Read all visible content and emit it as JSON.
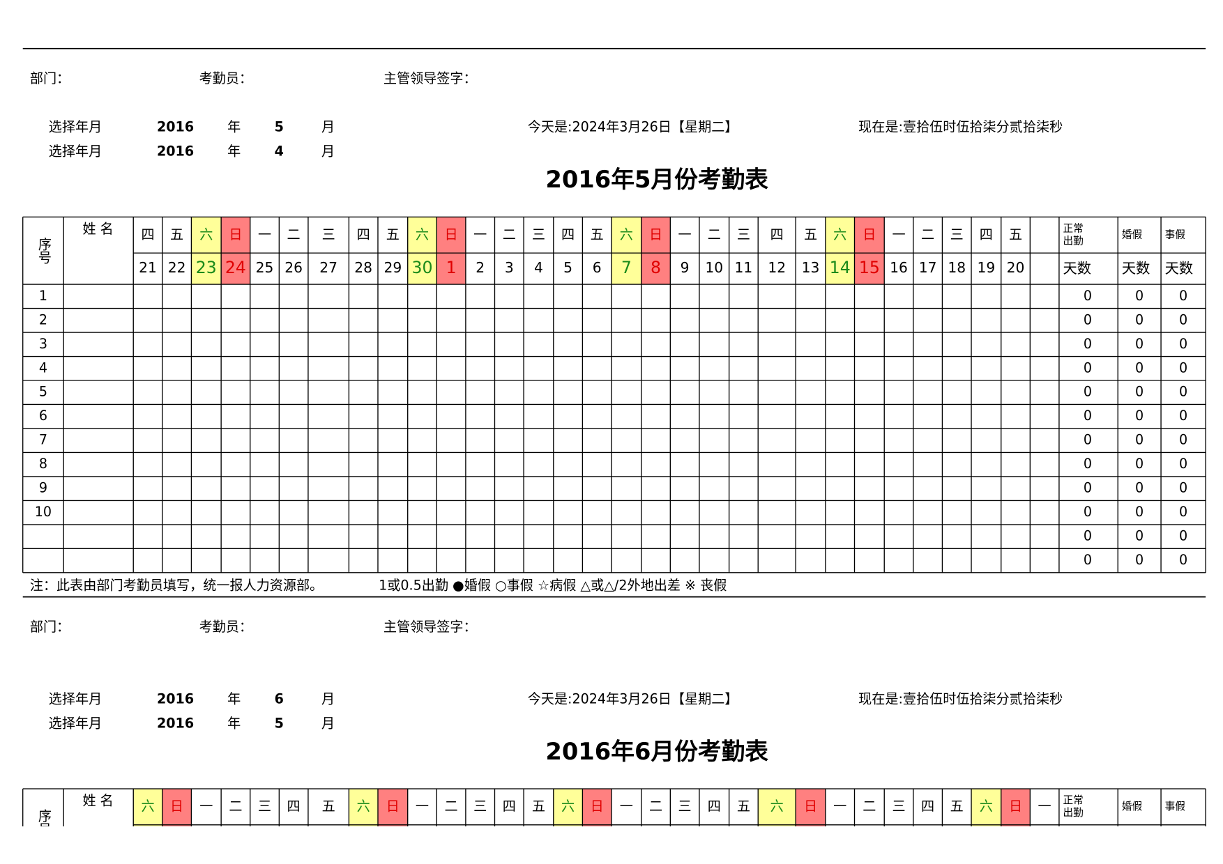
{
  "sections": [
    {
      "dept_label": "部门：",
      "clerk_label": "考勤员：",
      "leader_label": "主管领导签字：",
      "select_rows": [
        {
          "label": "选择年月",
          "year": "2016",
          "year_unit": "年",
          "month": "5",
          "month_unit": "月"
        },
        {
          "label": "选择年月",
          "year": "2016",
          "year_unit": "年",
          "month": "4",
          "month_unit": "月"
        }
      ],
      "today": "今天是:2024年3月26日【星期二】",
      "now": "现在是:壹拾伍时伍拾柒分贰拾柒秒",
      "title": "2016年5月份考勤表",
      "table": {
        "no_header": "序号",
        "name_header": "姓 名",
        "weekdays": [
          "四",
          "五",
          "六",
          "日",
          "一",
          "二",
          "三",
          "四",
          "五",
          "六",
          "日",
          "一",
          "二",
          "三",
          "四",
          "五",
          "六",
          "日",
          "一",
          "二",
          "三",
          "四",
          "五",
          "六",
          "日",
          "一",
          "二",
          "三",
          "四",
          "五",
          null
        ],
        "days": [
          21,
          22,
          23,
          24,
          25,
          26,
          27,
          28,
          29,
          30,
          1,
          2,
          3,
          4,
          5,
          6,
          7,
          8,
          9,
          10,
          11,
          12,
          13,
          14,
          15,
          16,
          17,
          18,
          19,
          20,
          null
        ],
        "summary_headers": [
          "正常出勤",
          "婚假",
          "事假"
        ],
        "summary_units": [
          "天数",
          "天数",
          "天数"
        ],
        "rows": [
          {
            "no": 1,
            "values": [
              0,
              0,
              0
            ]
          },
          {
            "no": 2,
            "values": [
              0,
              0,
              0
            ]
          },
          {
            "no": 3,
            "values": [
              0,
              0,
              0
            ]
          },
          {
            "no": 4,
            "values": [
              0,
              0,
              0
            ]
          },
          {
            "no": 5,
            "values": [
              0,
              0,
              0
            ]
          },
          {
            "no": 6,
            "values": [
              0,
              0,
              0
            ]
          },
          {
            "no": 7,
            "values": [
              0,
              0,
              0
            ]
          },
          {
            "no": 8,
            "values": [
              0,
              0,
              0
            ]
          },
          {
            "no": 9,
            "values": [
              0,
              0,
              0
            ]
          },
          {
            "no": 10,
            "values": [
              0,
              0,
              0
            ]
          },
          {
            "no": null,
            "values": [
              0,
              0,
              0
            ]
          },
          {
            "no": null,
            "values": [
              0,
              0,
              0
            ]
          }
        ]
      },
      "note": "注：此表由部门考勤员填写，统一报人力资源部。",
      "legend": "1或0.5出勤 ●婚假 ○事假 ☆病假 △或△/2外地出差  ※ 丧假"
    },
    {
      "dept_label": "部门：",
      "clerk_label": "考勤员：",
      "leader_label": "主管领导签字：",
      "select_rows": [
        {
          "label": "选择年月",
          "year": "2016",
          "year_unit": "年",
          "month": "6",
          "month_unit": "月"
        },
        {
          "label": "选择年月",
          "year": "2016",
          "year_unit": "年",
          "month": "5",
          "month_unit": "月"
        }
      ],
      "today": "今天是:2024年3月26日【星期二】",
      "now": "现在是:壹拾伍时伍拾柒分贰拾柒秒",
      "title": "2016年6月份考勤表",
      "table": {
        "no_header": "序号",
        "name_header": "姓 名",
        "weekdays": [
          "六",
          "日",
          "一",
          "二",
          "三",
          "四",
          "五",
          "六",
          "日",
          "一",
          "二",
          "三",
          "四",
          "五",
          "六",
          "日",
          "一",
          "二",
          "三",
          "四",
          "五",
          "六",
          "日",
          "一",
          "二",
          "三",
          "四",
          "五",
          "六",
          "日",
          "一"
        ],
        "summary_headers": [
          "正常出勤",
          "婚假",
          "事假"
        ]
      }
    }
  ],
  "cell_styles": {
    "六": {
      "fill": "#ffff99",
      "color": "#1a8a1a"
    },
    "日": {
      "fill": "#ff8080",
      "color": "#e00000"
    }
  }
}
